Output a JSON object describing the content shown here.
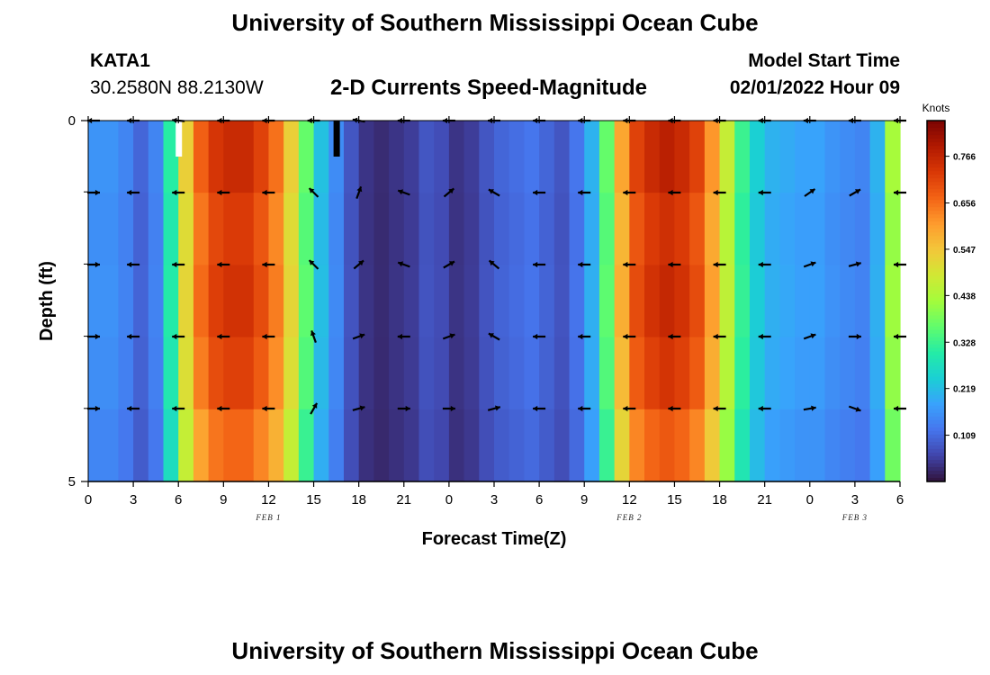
{
  "header": {
    "title": "University of Southern Mississippi Ocean Cube",
    "station_name": "KATA1",
    "station_coords": "30.2580N  88.2130W",
    "plot_heading": "2-D Currents Speed-Magnitude",
    "model_start_label": "Model Start Time",
    "model_start_value": "02/01/2022 Hour 09"
  },
  "footer": {
    "title": "University of Southern Mississippi Ocean Cube"
  },
  "chart_data": {
    "type": "heatmap",
    "xlabel": "Forecast Time(Z)",
    "ylabel": "Depth (ft)",
    "x_tick_labels": [
      "0",
      "3",
      "6",
      "9",
      "12",
      "15",
      "18",
      "21",
      "0",
      "3",
      "6",
      "9",
      "12",
      "15",
      "18",
      "21",
      "0",
      "3",
      "6"
    ],
    "date_labels": [
      {
        "label": "FEB 1",
        "at_tick": 4
      },
      {
        "label": "FEB 2",
        "at_tick": 12
      },
      {
        "label": "FEB 3",
        "at_tick": 17
      }
    ],
    "y_tick_labels": [
      "0",
      "5"
    ],
    "ylim": [
      0,
      5
    ],
    "colorbar": {
      "unit": "Knots",
      "min": 0.0,
      "max": 0.85,
      "tick_values": [
        0.766,
        0.656,
        0.547,
        0.438,
        0.328,
        0.219,
        0.109
      ],
      "tick_labels": [
        "0.766",
        "0.656",
        "0.547",
        "0.438",
        "0.328",
        "0.219",
        "0.109"
      ],
      "colors": [
        "#30123b",
        "#4145ab",
        "#4675ed",
        "#39a2fc",
        "#1bcfd4",
        "#24eca6",
        "#61fc6c",
        "#a4fc3b",
        "#d1e834",
        "#f3c63a",
        "#fe9b2d",
        "#f36315",
        "#d93806",
        "#b11901",
        "#7a0402"
      ]
    },
    "time_steps_hourly": 54,
    "speed_profile_knots": [
      0.16,
      0.16,
      0.14,
      0.1,
      0.14,
      0.3,
      0.52,
      0.66,
      0.72,
      0.74,
      0.74,
      0.7,
      0.64,
      0.52,
      0.36,
      0.22,
      0.15,
      0.08,
      0.04,
      0.03,
      0.04,
      0.05,
      0.08,
      0.07,
      0.04,
      0.05,
      0.08,
      0.1,
      0.11,
      0.12,
      0.1,
      0.08,
      0.12,
      0.2,
      0.36,
      0.58,
      0.7,
      0.74,
      0.76,
      0.74,
      0.7,
      0.6,
      0.46,
      0.32,
      0.24,
      0.2,
      0.19,
      0.18,
      0.18,
      0.16,
      0.15,
      0.14,
      0.2,
      0.42
    ],
    "depth_modifiers": [
      1.02,
      0.98,
      1.0,
      0.97,
      0.9
    ],
    "arrow_angles_deg": [
      [
        180,
        180,
        175,
        180,
        180,
        180,
        170,
        180,
        180,
        180,
        180,
        180,
        180,
        180,
        180,
        180,
        180,
        180,
        180
      ],
      [
        0,
        180,
        180,
        180,
        180,
        135,
        70,
        160,
        40,
        150,
        180,
        180,
        180,
        180,
        180,
        180,
        35,
        30,
        180
      ],
      [
        0,
        180,
        180,
        180,
        180,
        135,
        40,
        160,
        30,
        140,
        180,
        180,
        180,
        180,
        180,
        180,
        20,
        15,
        180
      ],
      [
        0,
        180,
        180,
        180,
        180,
        110,
        20,
        180,
        20,
        150,
        180,
        180,
        180,
        180,
        180,
        180,
        20,
        0,
        180
      ],
      [
        0,
        180,
        180,
        180,
        180,
        60,
        15,
        0,
        0,
        15,
        180,
        180,
        180,
        180,
        180,
        180,
        10,
        340,
        180
      ]
    ],
    "markers": [
      {
        "time_index": 6,
        "color": "#ffffff"
      },
      {
        "time_index": 16.5,
        "color": "#000000"
      }
    ]
  }
}
